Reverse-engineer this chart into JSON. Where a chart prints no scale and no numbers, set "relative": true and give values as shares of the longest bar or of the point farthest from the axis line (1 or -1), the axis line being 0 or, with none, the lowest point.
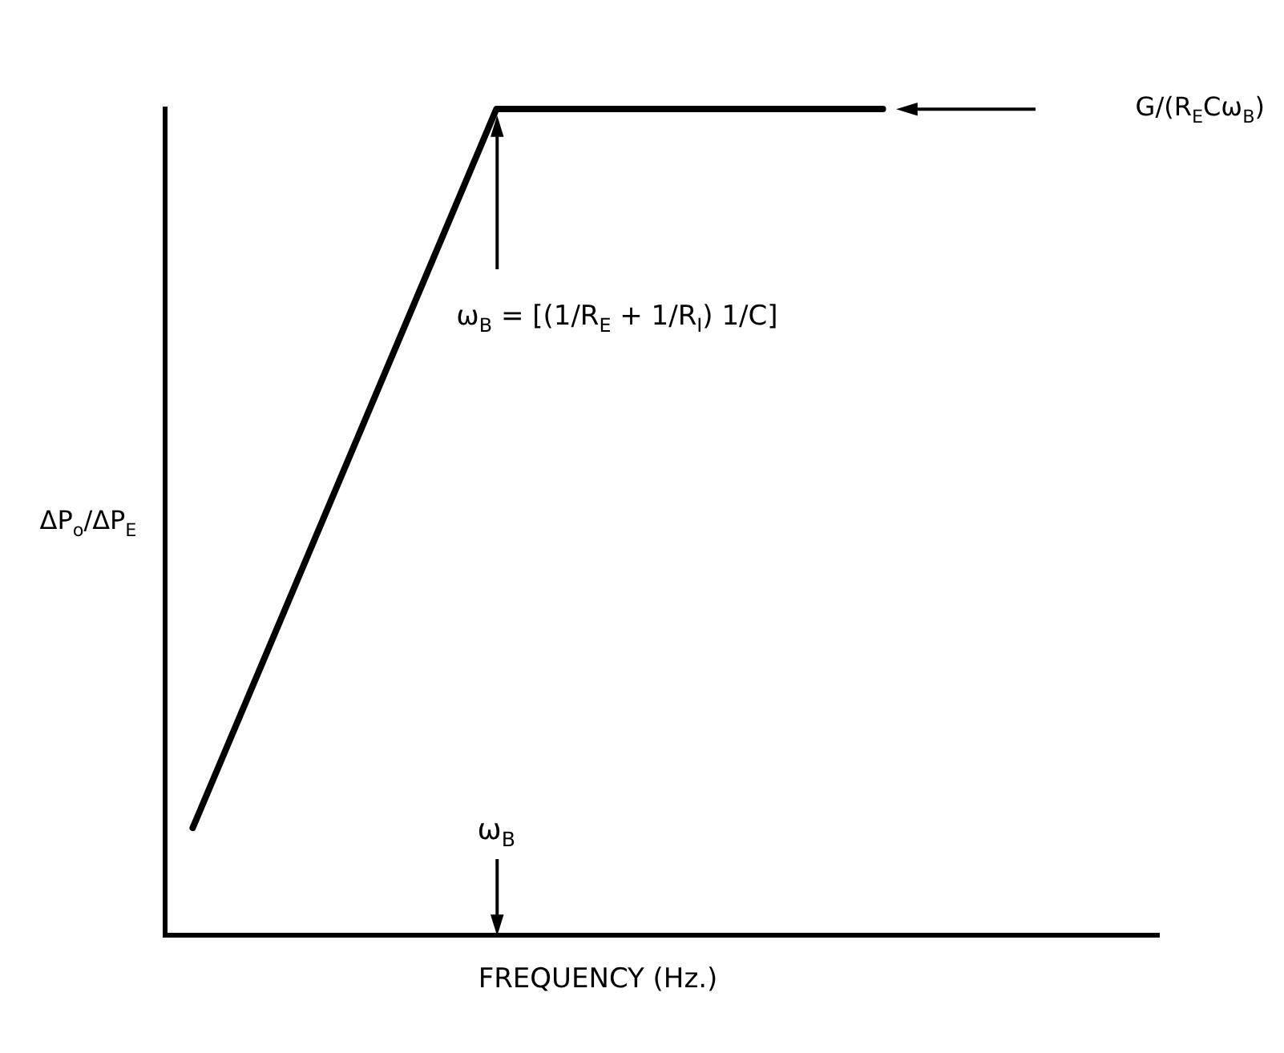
{
  "chart_data": {
    "type": "line",
    "relative": true,
    "xlabel": "FREQUENCY (Hz.)",
    "ylabel": "ΔP$_{o}$/ΔP$_{E}$",
    "categories": [
      null,
      null,
      null,
      null,
      null,
      null,
      null,
      null,
      null,
      null,
      null,
      null,
      null,
      null,
      null,
      null,
      null,
      null,
      null,
      null,
      null,
      null,
      null,
      null,
      null,
      null,
      null,
      null,
      null,
      null,
      null,
      null,
      null,
      null,
      null,
      null,
      null
    ],
    "series": [
      {
        "color": "#000000",
        "values": [
          null,
          0.13,
          null,
          null,
          null,
          null,
          null,
          null,
          null,
          null,
          null,
          null,
          1,
          null,
          null,
          null,
          null,
          null,
          null,
          null,
          null,
          null,
          null,
          null,
          null,
          null,
          1,
          null,
          null,
          null,
          null,
          null,
          null,
          null,
          null,
          null,
          null
        ]
      }
    ],
    "annotations": [
      "ω$_{B}$",
      "ω$_{B}$ = [(1/R$_{E}$ + 1/R$_{I}$) 1/C]",
      "G/(R$_{E}$Cω$_{B}$)"
    ]
  }
}
